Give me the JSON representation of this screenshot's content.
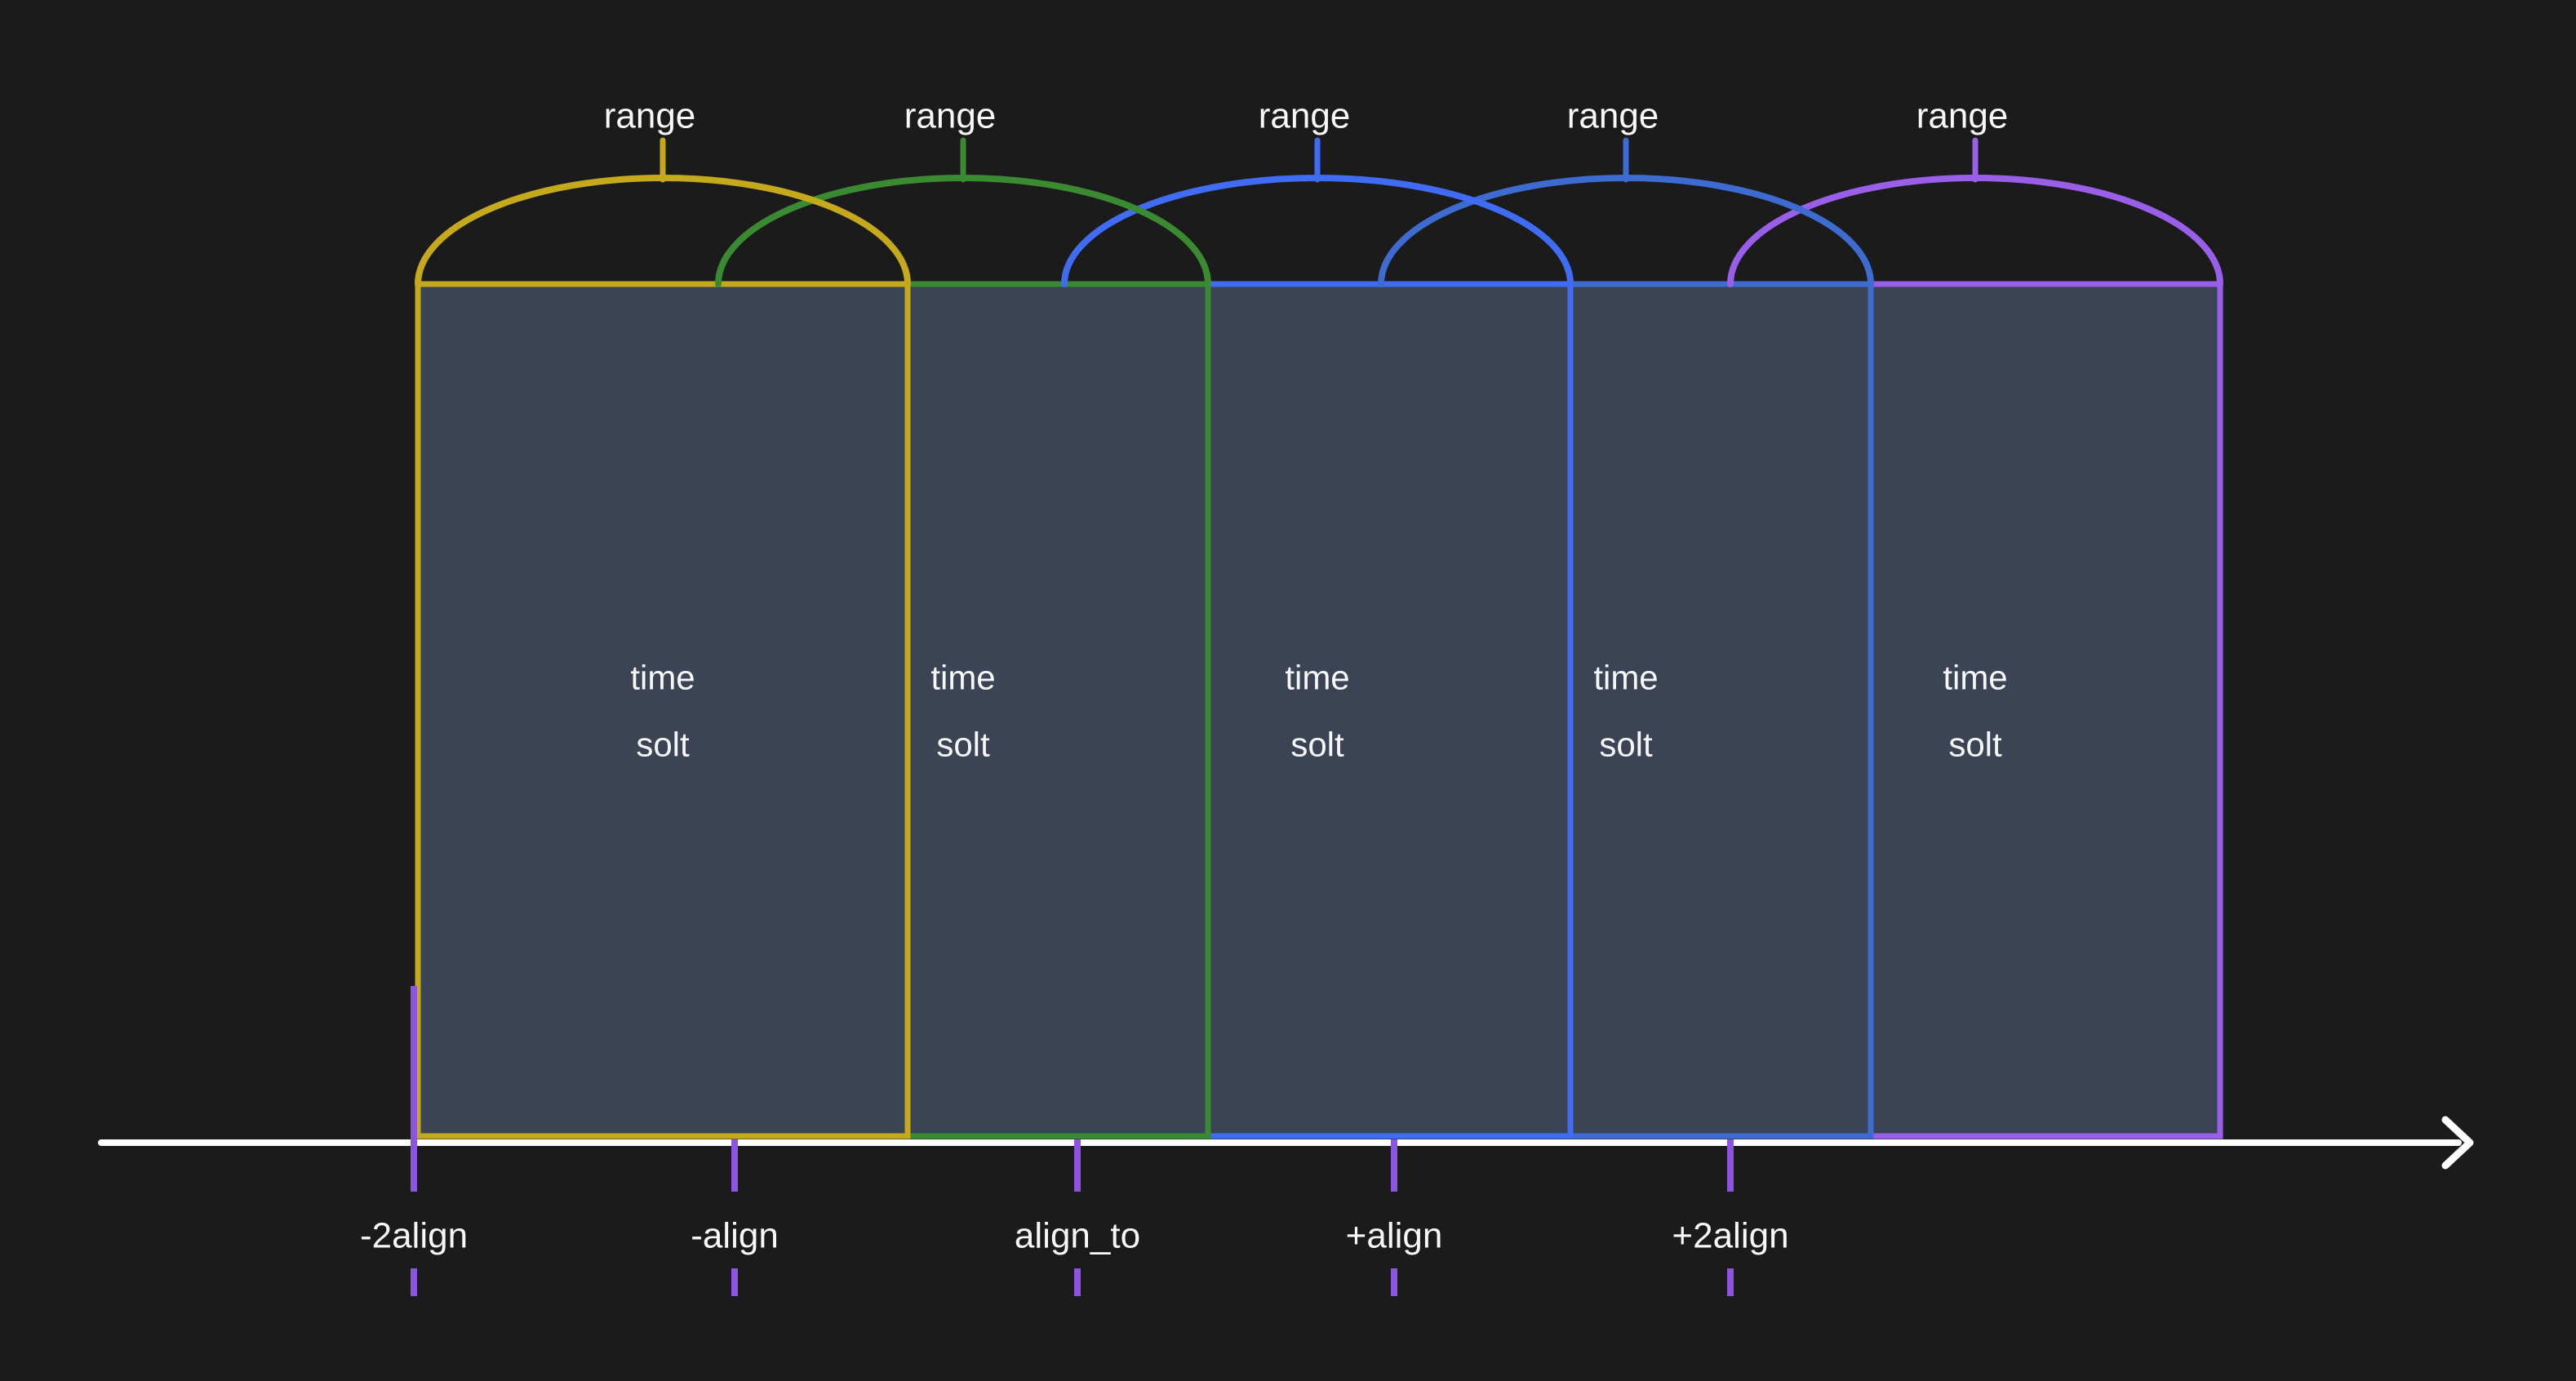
{
  "diagram": {
    "background": "#1b1b1b",
    "slot_fill": "#3b4454",
    "text_color": "#f7f7f7",
    "axis_color": "#ffffff",
    "tick_color": "#8d54e2",
    "series": [
      {
        "range_label": "range",
        "slot_line1": "time",
        "slot_line2": "solt",
        "axis_label": "-2align",
        "color": "#c4a91c"
      },
      {
        "range_label": "range",
        "slot_line1": "time",
        "slot_line2": "solt",
        "axis_label": "-align",
        "color": "#3a8a32"
      },
      {
        "range_label": "range",
        "slot_line1": "time",
        "slot_line2": "solt",
        "axis_label": "align_to",
        "color": "#3f6cf2"
      },
      {
        "range_label": "range",
        "slot_line1": "time",
        "slot_line2": "solt",
        "axis_label": "+align",
        "color": "#3d6bd0"
      },
      {
        "range_label": "range",
        "slot_line1": "time",
        "slot_line2": "solt",
        "axis_label": "+2align",
        "color": "#9a5fe8"
      }
    ]
  }
}
